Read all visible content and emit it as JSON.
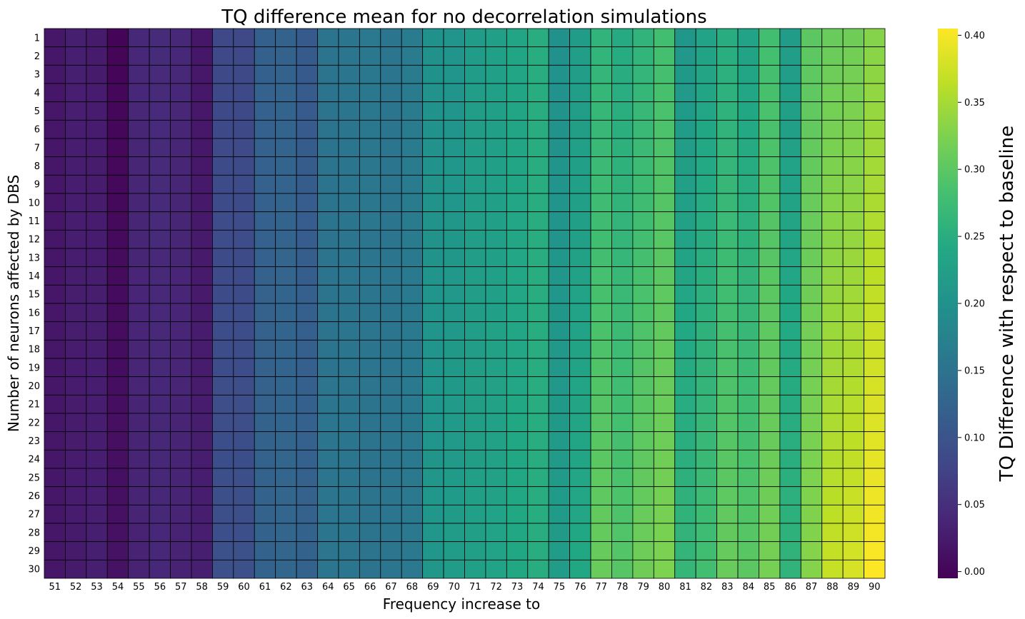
{
  "chart_data": {
    "type": "heatmap",
    "title": "TQ difference mean for no decorrelation simulations",
    "xlabel": "Frequency increase to",
    "ylabel": "Number of neurons affected by DBS",
    "x": [
      51,
      52,
      53,
      54,
      55,
      56,
      57,
      58,
      59,
      60,
      61,
      62,
      63,
      64,
      65,
      66,
      67,
      68,
      69,
      70,
      71,
      72,
      73,
      74,
      75,
      76,
      77,
      78,
      79,
      80,
      81,
      82,
      83,
      84,
      85,
      86,
      87,
      88,
      89,
      90
    ],
    "y": [
      1,
      2,
      3,
      4,
      5,
      6,
      7,
      8,
      9,
      10,
      11,
      12,
      13,
      14,
      15,
      16,
      17,
      18,
      19,
      20,
      21,
      22,
      23,
      24,
      25,
      26,
      27,
      28,
      29,
      30
    ],
    "column_base": [
      0.02,
      0.03,
      0.025,
      0.0,
      0.04,
      0.045,
      0.04,
      0.02,
      0.085,
      0.085,
      0.12,
      0.125,
      0.11,
      0.15,
      0.155,
      0.16,
      0.155,
      0.165,
      0.2,
      0.205,
      0.22,
      0.225,
      0.235,
      0.25,
      0.2,
      0.22,
      0.26,
      0.245,
      0.26,
      0.28,
      0.21,
      0.23,
      0.25,
      0.23,
      0.28,
      0.22,
      0.3,
      0.31,
      0.315,
      0.33
    ],
    "column_growth": [
      0.0,
      -0.005,
      0.005,
      0.015,
      -0.005,
      -0.005,
      -0.005,
      0.01,
      0.01,
      0.01,
      0.005,
      0.005,
      0.015,
      0.005,
      0.0,
      -0.01,
      0.0,
      -0.005,
      0.01,
      0.015,
      0.005,
      0.005,
      0.005,
      0.0,
      0.02,
      0.02,
      0.05,
      0.05,
      0.055,
      0.045,
      0.055,
      0.05,
      0.06,
      0.07,
      0.04,
      0.04,
      0.03,
      0.06,
      0.065,
      0.075
    ],
    "values_note": "",
    "colorbar": {
      "label": "TQ Difference with respect to baseline",
      "ticks": [
        0.0,
        0.05,
        0.1,
        0.15,
        0.2,
        0.25,
        0.3,
        0.35,
        0.4
      ],
      "tick_labels": [
        "0.00",
        "0.05",
        "0.10",
        "0.15",
        "0.20",
        "0.25",
        "0.30",
        "0.35",
        "0.40"
      ],
      "range": [
        -0.005,
        0.405
      ]
    },
    "colormap": "viridis",
    "grid": true,
    "legend": "colorbar-right"
  }
}
